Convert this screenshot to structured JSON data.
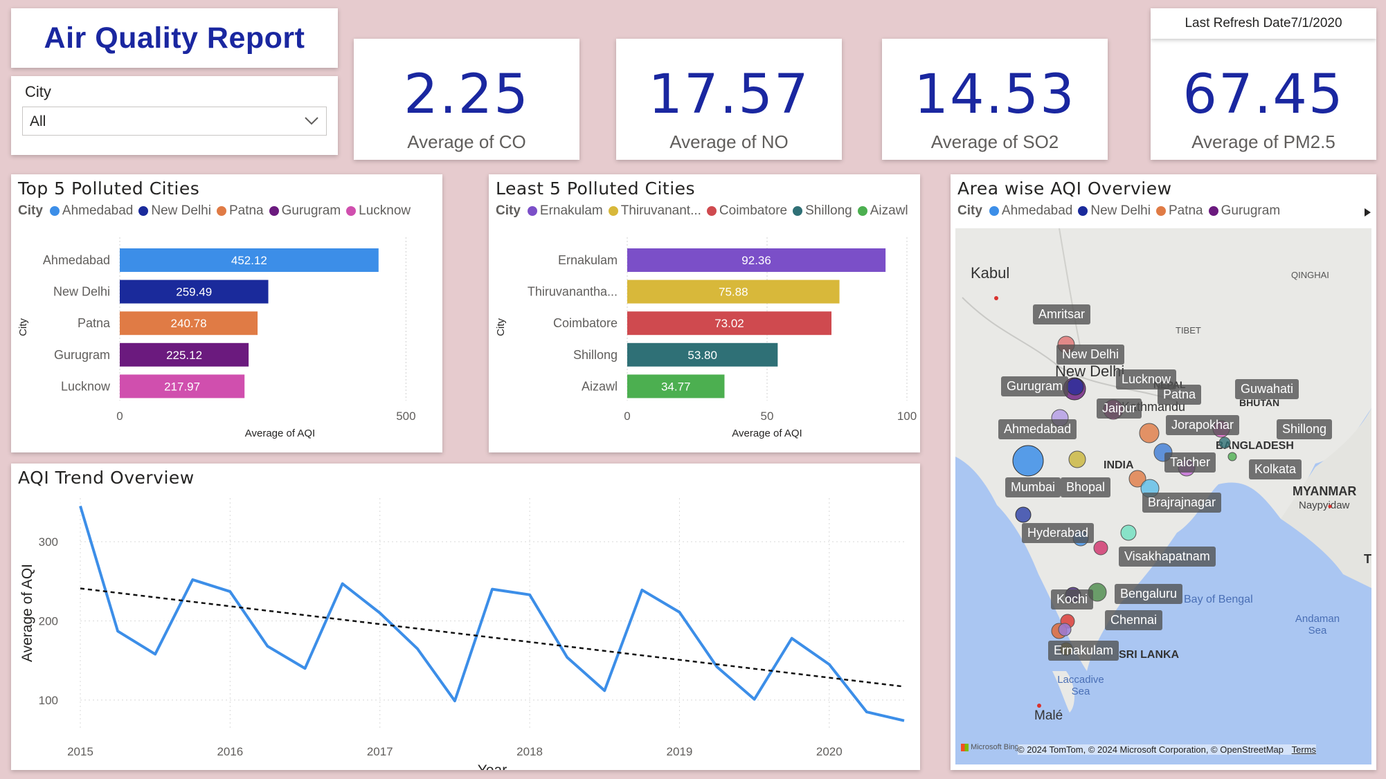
{
  "header": {
    "title": "Air Quality Report",
    "last_refresh": "Last Refresh Date7/1/2020"
  },
  "slicer": {
    "label": "City",
    "value": "All",
    "icon": "chevron-down-icon"
  },
  "kpis": [
    {
      "value": "2.25",
      "caption": "Average of CO"
    },
    {
      "value": "17.57",
      "caption": "Average of NO"
    },
    {
      "value": "14.53",
      "caption": "Average of SO2"
    },
    {
      "value": "67.45",
      "caption": "Average of PM2.5"
    }
  ],
  "top5": {
    "title": "Top 5 Polluted Cities",
    "legend_title": "City",
    "legend": [
      "Ahmedabad",
      "New Delhi",
      "Patna",
      "Gurugram",
      "Lucknow"
    ],
    "xlabel": "Average of AQI",
    "ylabel": "City",
    "xticks": [
      "0",
      "500"
    ]
  },
  "least5": {
    "title": "Least 5 Polluted Cities",
    "legend_title": "City",
    "legend": [
      "Ernakulam",
      "Thiruvanant...",
      "Coimbatore",
      "Shillong",
      "Aizawl"
    ],
    "xlabel": "Average of AQI",
    "ylabel": "City",
    "xticks": [
      "0",
      "50",
      "100"
    ]
  },
  "trend": {
    "title": "AQI Trend Overview",
    "xlabel": "Year",
    "ylabel": "Average of AQI",
    "xticks": [
      "2015",
      "2016",
      "2017",
      "2018",
      "2019",
      "2020"
    ],
    "yticks": [
      "100",
      "200",
      "300"
    ]
  },
  "map": {
    "title": "Area wise AQI Overview",
    "legend_title": "City",
    "legend": [
      "Ahmedabad",
      "New Delhi",
      "Patna",
      "Gurugram"
    ],
    "geo_labels": [
      "Kabul",
      "QINGHAI",
      "TIBET",
      "NEPAL",
      "BHUTAN",
      "BANGLADESH",
      "INDIA",
      "MYANMAR",
      "Naypyidaw",
      "Bay of Bengal",
      "Andaman Sea",
      "SRI LANKA",
      "Laccadive Sea",
      "Malé",
      "New Delhi",
      "Kathmandu",
      "T"
    ],
    "city_labels": [
      "Amritsar",
      "New Delhi",
      "Gurugram",
      "Lucknow",
      "Patna",
      "Guwahati",
      "Jaipur",
      "Ahmedabad",
      "Jorapokhar",
      "Shillong",
      "Talcher",
      "Kolkata",
      "Mumbai",
      "Bhopal",
      "Brajrajnagar",
      "Hyderabad",
      "Visakhapatnam",
      "Bengaluru",
      "Kochi",
      "Chennai",
      "Ernakulam"
    ],
    "attribution": "© 2024 TomTom, © 2024 Microsoft Corporation, © OpenStreetMap",
    "terms": "Terms",
    "brand": "Microsoft Bing"
  },
  "colors": {
    "title_blue": "#1a27a0",
    "line_blue": "#3c8ee8",
    "background": "#e6cbce"
  },
  "chart_data": [
    {
      "type": "bar",
      "title": "Top 5 Polluted Cities",
      "categories": [
        "Ahmedabad",
        "New Delhi",
        "Patna",
        "Gurugram",
        "Lucknow"
      ],
      "values": [
        452.12,
        259.49,
        240.78,
        225.12,
        217.97
      ],
      "labels": [
        "452.12",
        "259.49",
        "240.78",
        "225.12",
        "217.97"
      ],
      "colors": [
        "#3c8ee8",
        "#1a2a9b",
        "#e07b45",
        "#6b1a7e",
        "#d04fae"
      ],
      "xlim": [
        0,
        560
      ],
      "xlabel": "Average of AQI",
      "ylabel": "City"
    },
    {
      "type": "bar",
      "title": "Least 5 Polluted Cities",
      "categories": [
        "Ernakulam",
        "Thiruvanantha...",
        "Coimbatore",
        "Shillong",
        "Aizawl"
      ],
      "values": [
        92.36,
        75.88,
        73.02,
        53.8,
        34.77
      ],
      "labels": [
        "92.36",
        "75.88",
        "73.02",
        "53.80",
        "34.77"
      ],
      "colors": [
        "#7b4fc8",
        "#d8b83a",
        "#cf4a4f",
        "#2f7076",
        "#4caf50"
      ],
      "xlim": [
        0,
        100
      ],
      "xlabel": "Average of AQI",
      "ylabel": "City"
    },
    {
      "type": "line",
      "title": "AQI Trend Overview",
      "x": [
        2015.0,
        2015.25,
        2015.5,
        2015.75,
        2016.0,
        2016.25,
        2016.5,
        2016.75,
        2017.0,
        2017.25,
        2017.5,
        2017.75,
        2018.0,
        2018.25,
        2018.5,
        2018.75,
        2019.0,
        2019.25,
        2019.5,
        2019.75,
        2020.0,
        2020.25,
        2020.5
      ],
      "y": [
        345,
        187,
        158,
        252,
        237,
        168,
        140,
        247,
        210,
        165,
        99,
        240,
        233,
        154,
        112,
        239,
        211,
        142,
        101,
        178,
        145,
        85,
        74
      ],
      "trendline": {
        "x": [
          2015.0,
          2020.5
        ],
        "y": [
          241,
          117
        ]
      },
      "ylim": [
        65,
        355
      ],
      "xlim": [
        2015,
        2020.5
      ],
      "xlabel": "Year",
      "ylabel": "Average of AQI",
      "grid": true
    }
  ]
}
